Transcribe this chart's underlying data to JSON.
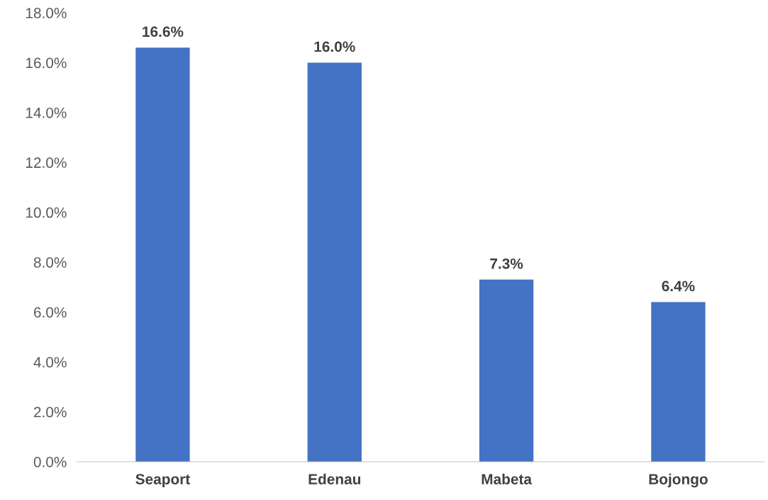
{
  "chart_data": {
    "type": "bar",
    "categories": [
      "Seaport",
      "Edenau",
      "Mabeta",
      "Bojongo"
    ],
    "values": [
      16.6,
      16.0,
      7.3,
      6.4
    ],
    "value_labels": [
      "16.6%",
      "16.0%",
      "7.3%",
      "6.4%"
    ],
    "color": "#4472c4",
    "ylim": [
      0,
      18
    ],
    "yticks": [
      {
        "value": 0,
        "label": "0.0%"
      },
      {
        "value": 2,
        "label": "2.0%"
      },
      {
        "value": 4,
        "label": "4.0%"
      },
      {
        "value": 6,
        "label": "6.0%"
      },
      {
        "value": 8,
        "label": "8.0%"
      },
      {
        "value": 10,
        "label": "10.0%"
      },
      {
        "value": 12,
        "label": "12.0%"
      },
      {
        "value": 14,
        "label": "14.0%"
      },
      {
        "value": 16,
        "label": "16.0%"
      },
      {
        "value": 18,
        "label": "18.0%"
      }
    ],
    "grid": false
  }
}
